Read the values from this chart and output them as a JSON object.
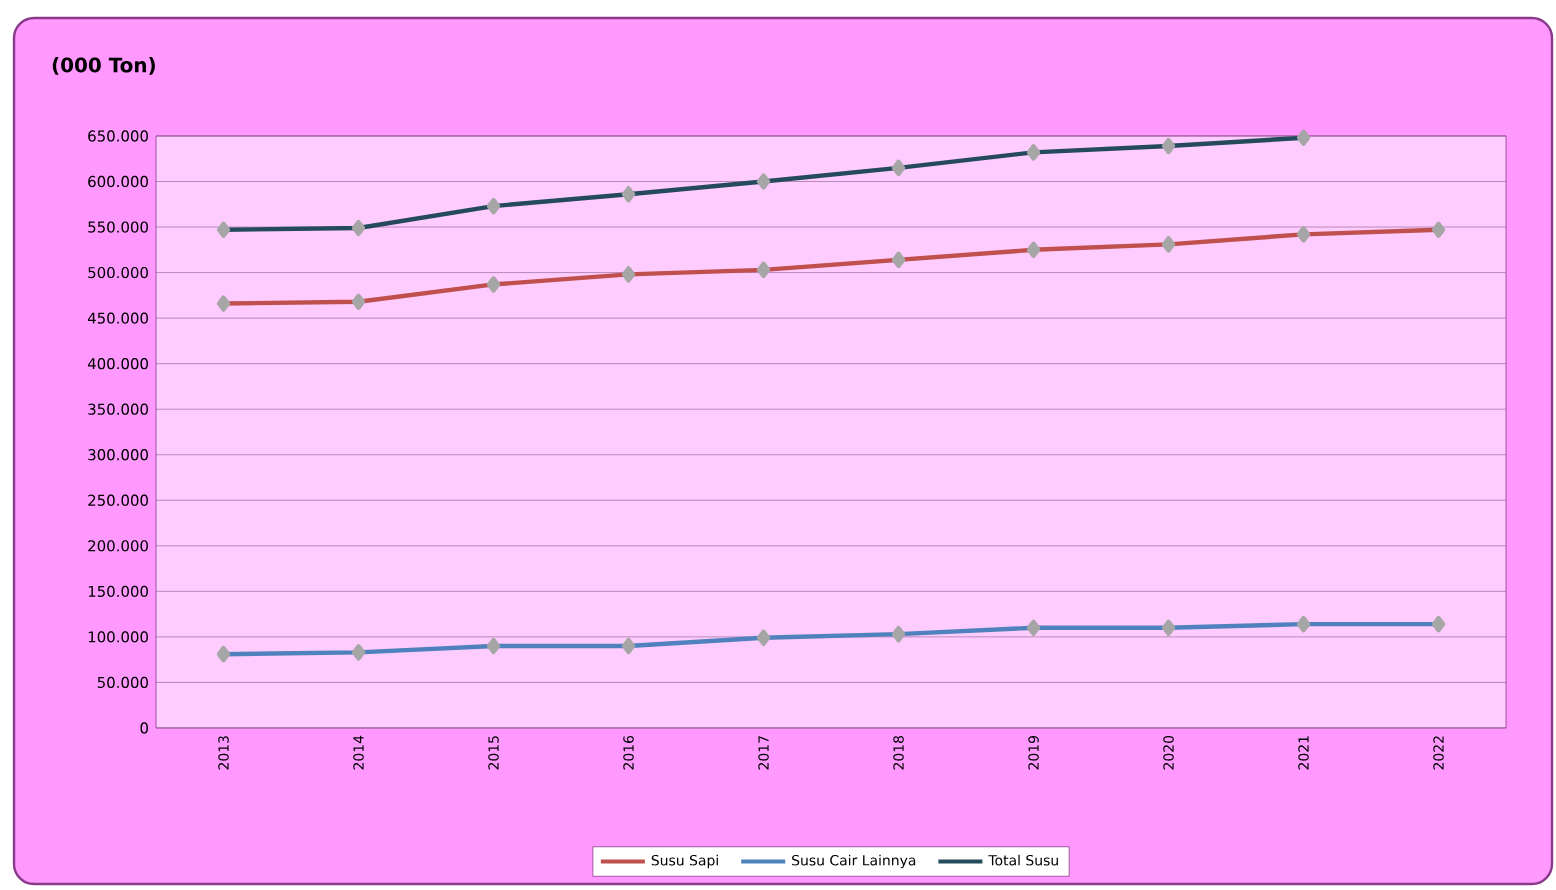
{
  "chart_data": {
    "type": "line",
    "title": "(000 Ton)",
    "categories": [
      "2013",
      "2014",
      "2015",
      "2016",
      "2017",
      "2018",
      "2019",
      "2020",
      "2021",
      "2022"
    ],
    "series": [
      {
        "name": "Susu Sapi",
        "color": "#c0504d",
        "values": [
          466000,
          468000,
          487000,
          498000,
          503000,
          514000,
          525000,
          531000,
          542000,
          547000
        ]
      },
      {
        "name": "Susu Cair Lainnya",
        "color": "#4f81bd",
        "values": [
          81000,
          83000,
          90000,
          90000,
          99000,
          103000,
          110000,
          110000,
          114000,
          114000
        ]
      },
      {
        "name": "Total Susu",
        "color": "#254a5c",
        "values": [
          547000,
          549000,
          573000,
          586000,
          600000,
          615000,
          632000,
          639000,
          648000,
          null
        ]
      }
    ],
    "ylim": [
      0,
      650000
    ],
    "yticks": [
      {
        "value": 0,
        "label": "0"
      },
      {
        "value": 50000,
        "label": "50.000"
      },
      {
        "value": 100000,
        "label": "100.000"
      },
      {
        "value": 150000,
        "label": "150.000"
      },
      {
        "value": 200000,
        "label": "200.000"
      },
      {
        "value": 250000,
        "label": "250.000"
      },
      {
        "value": 300000,
        "label": "300.000"
      },
      {
        "value": 350000,
        "label": "350.000"
      },
      {
        "value": 400000,
        "label": "400.000"
      },
      {
        "value": 450000,
        "label": "450.000"
      },
      {
        "value": 500000,
        "label": "500.000"
      },
      {
        "value": 550000,
        "label": "550.000"
      },
      {
        "value": 600000,
        "label": "600.000"
      },
      {
        "value": 650000,
        "label": "650.000"
      }
    ],
    "grid": "y",
    "legend": "bottom",
    "marker": "diamond",
    "line_style": "solid"
  }
}
